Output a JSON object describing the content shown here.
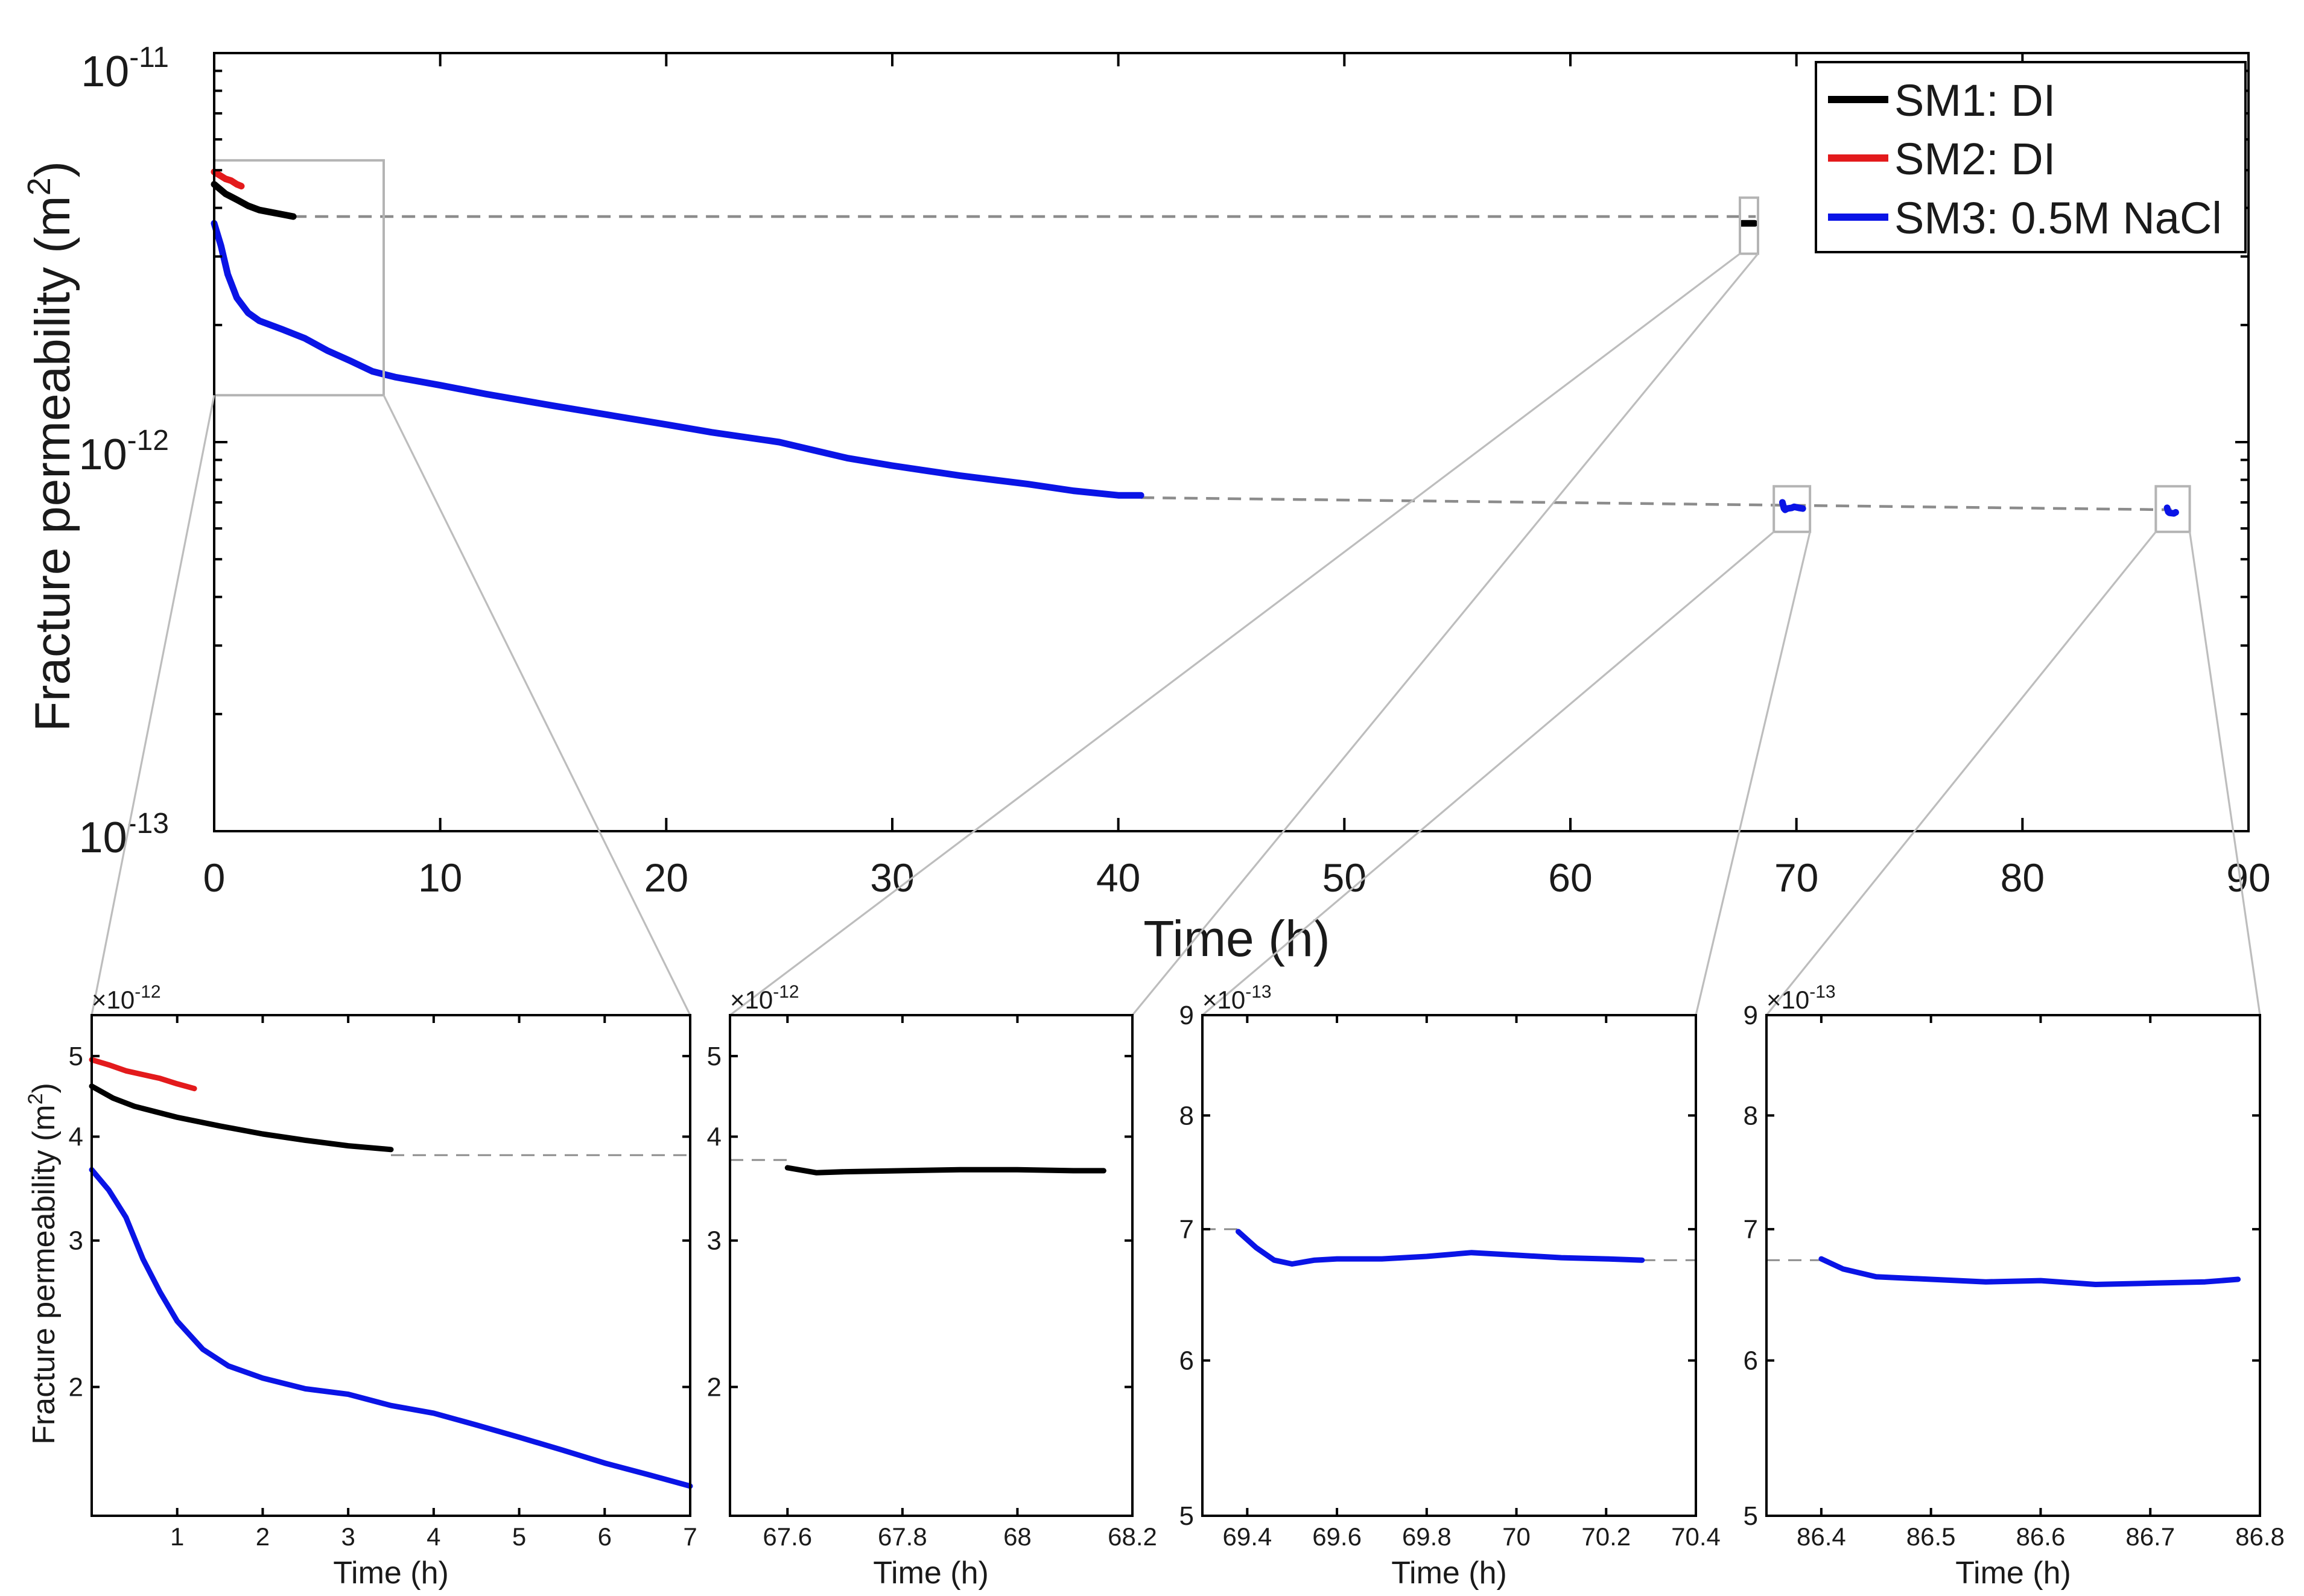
{
  "figure": {
    "main_ylabel": "Fracture permeability (m",
    "main_ylabel_sup": "2",
    "main_ylabel_close": ")",
    "sub_ylabel": "Fracture permeability (m",
    "sub_ylabel_sup": "2",
    "sub_ylabel_close": ")",
    "exp_base": "10",
    "times_base": "×10",
    "colors": {
      "SM1": "#000000",
      "SM2": "#e31a1c",
      "SM3": "#0a14e6"
    }
  },
  "chart_data": [
    {
      "id": "main",
      "type": "line",
      "yscale": "log",
      "xlabel": "Time (h)",
      "ylabel": "Fracture permeability (m2)",
      "xlim": [
        0,
        90
      ],
      "ylim": [
        1e-13,
        1e-11
      ],
      "xticks": [
        0,
        10,
        20,
        30,
        40,
        50,
        60,
        70,
        80,
        90
      ],
      "xtick_labels": [
        "0",
        "10",
        "20",
        "30",
        "40",
        "50",
        "60",
        "70",
        "80",
        "90"
      ],
      "ytick_labels": [
        {
          "value": 1e-11,
          "base": "10",
          "exp": "-11"
        },
        {
          "value": 1e-12,
          "base": "10",
          "exp": "-12"
        },
        {
          "value": 1e-13,
          "base": "10",
          "exp": "-13"
        }
      ],
      "legend": {
        "position": "top-right",
        "entries": [
          {
            "series": "SM1",
            "label": "SM1: DI"
          },
          {
            "series": "SM2",
            "label": "SM2: DI"
          },
          {
            "series": "SM3",
            "label": "SM3: 0.5M NaCl"
          }
        ]
      },
      "series": [
        {
          "name": "SM1: DI",
          "key": "SM1",
          "x": [
            0,
            0.5,
            1,
            1.5,
            2,
            2.5,
            3,
            3.5
          ],
          "y": [
            4.6e-12,
            4.35e-12,
            4.2e-12,
            4.05e-12,
            3.95e-12,
            3.9e-12,
            3.85e-12,
            3.8e-12
          ]
        },
        {
          "name": "SM2: DI",
          "key": "SM2",
          "x": [
            0,
            0.25,
            0.5,
            0.75,
            1,
            1.2
          ],
          "y": [
            4.95e-12,
            4.85e-12,
            4.75e-12,
            4.7e-12,
            4.6e-12,
            4.55e-12
          ]
        },
        {
          "name": "SM1: DI (day 3)",
          "key": "SM1",
          "x": [
            67.6,
            68.15
          ],
          "y": [
            3.65e-12,
            3.65e-12
          ]
        },
        {
          "name": "SM3: 0.5M NaCl",
          "key": "SM3",
          "x": [
            0,
            0.3,
            0.6,
            1,
            1.5,
            2,
            3,
            4,
            5,
            6,
            7,
            8,
            10,
            12,
            15,
            18,
            20,
            22,
            25,
            28,
            30,
            33,
            36,
            38,
            40,
            41
          ],
          "y": [
            3.65e-12,
            3.2e-12,
            2.7e-12,
            2.35e-12,
            2.15e-12,
            2.05e-12,
            1.95e-12,
            1.85e-12,
            1.72e-12,
            1.62e-12,
            1.52e-12,
            1.47e-12,
            1.4e-12,
            1.33e-12,
            1.24e-12,
            1.16e-12,
            1.11e-12,
            1.06e-12,
            1e-12,
            9.1e-13,
            8.7e-13,
            8.2e-13,
            7.8e-13,
            7.5e-13,
            7.3e-13,
            7.3e-13
          ]
        },
        {
          "name": "SM3: 0.5M NaCl (day 3)",
          "key": "SM3",
          "x": [
            69.38,
            69.45,
            69.5,
            69.6,
            69.8,
            69.9,
            70.1,
            70.28
          ],
          "y": [
            7e-13,
            6.75e-13,
            6.7e-13,
            6.75e-13,
            6.78e-13,
            6.82e-13,
            6.78e-13,
            6.75e-13
          ]
        },
        {
          "name": "SM3: 0.5M NaCl (day 4)",
          "key": "SM3",
          "x": [
            86.4,
            86.45,
            86.5,
            86.6,
            86.7,
            86.78
          ],
          "y": [
            6.78e-13,
            6.62e-13,
            6.58e-13,
            6.57e-13,
            6.56e-13,
            6.6e-13
          ]
        }
      ],
      "reference_lines": [
        {
          "x": [
            3.5,
            68.2
          ],
          "y": [
            3.8e-12,
            3.8e-12
          ]
        },
        {
          "x": [
            41,
            86.6
          ],
          "y": [
            7.2e-13,
            6.7e-13
          ]
        }
      ],
      "zoom_boxes": [
        {
          "x": [
            0,
            7.5
          ],
          "y": [
            1.32e-12,
            5.3e-12
          ]
        },
        {
          "x": [
            67.5,
            68.3
          ],
          "y": [
            3.05e-12,
            4.25e-12
          ]
        },
        {
          "x": [
            69.0,
            70.6
          ],
          "y": [
            5.88e-13,
            7.7e-13
          ]
        },
        {
          "x": [
            85.9,
            87.4
          ],
          "y": [
            5.88e-13,
            7.7e-13
          ]
        }
      ]
    },
    {
      "id": "zoom1",
      "type": "line",
      "yscale": "log",
      "xlabel": "Time (h)",
      "ylabel": "Fracture permeability (m2)",
      "xlim": [
        0,
        7
      ],
      "ylim": [
        1.4e-12,
        5.6e-12
      ],
      "multiplier": {
        "base": "×10",
        "exp": "-12"
      },
      "xticks": [
        1,
        2,
        3,
        4,
        5,
        6,
        7
      ],
      "xtick_labels": [
        "1",
        "2",
        "3",
        "4",
        "5",
        "6",
        "7"
      ],
      "yticks": [
        2e-12,
        3e-12,
        4e-12,
        5e-12
      ],
      "ytick_labels": [
        "2",
        "3",
        "4",
        "5"
      ],
      "series": [
        {
          "name": "SM2: DI",
          "key": "SM2",
          "x": [
            0,
            0.2,
            0.4,
            0.6,
            0.8,
            1.0,
            1.2
          ],
          "y": [
            4.95e-12,
            4.88e-12,
            4.8e-12,
            4.75e-12,
            4.7e-12,
            4.63e-12,
            4.57e-12
          ]
        },
        {
          "name": "SM1: DI",
          "key": "SM1",
          "x": [
            0,
            0.25,
            0.5,
            1,
            1.5,
            2,
            2.5,
            3,
            3.5
          ],
          "y": [
            4.6e-12,
            4.45e-12,
            4.35e-12,
            4.22e-12,
            4.12e-12,
            4.03e-12,
            3.96e-12,
            3.9e-12,
            3.86e-12
          ]
        },
        {
          "name": "SM3: 0.5M NaCl",
          "key": "SM3",
          "x": [
            0,
            0.2,
            0.4,
            0.6,
            0.8,
            1.0,
            1.3,
            1.6,
            2.0,
            2.5,
            3.0,
            3.5,
            4.0,
            4.5,
            5.0,
            5.5,
            6.0,
            6.5,
            7.0
          ],
          "y": [
            3.65e-12,
            3.45e-12,
            3.2e-12,
            2.85e-12,
            2.6e-12,
            2.4e-12,
            2.22e-12,
            2.12e-12,
            2.05e-12,
            1.99e-12,
            1.96e-12,
            1.9e-12,
            1.86e-12,
            1.8e-12,
            1.74e-12,
            1.68e-12,
            1.62e-12,
            1.57e-12,
            1.52e-12
          ]
        }
      ],
      "reference_lines": [
        {
          "x": [
            3.5,
            7
          ],
          "y": [
            3.8e-12,
            3.8e-12
          ]
        }
      ]
    },
    {
      "id": "zoom2",
      "type": "line",
      "yscale": "log",
      "xlabel": "Time (h)",
      "xlim": [
        67.5,
        68.2
      ],
      "ylim": [
        1.4e-12,
        5.6e-12
      ],
      "multiplier": {
        "base": "×10",
        "exp": "-12"
      },
      "xticks": [
        67.6,
        67.8,
        68,
        68.2
      ],
      "xtick_labels": [
        "67.6",
        "67.8",
        "68",
        "68.2"
      ],
      "yticks": [
        2e-12,
        3e-12,
        4e-12,
        5e-12
      ],
      "ytick_labels": [
        "2",
        "3",
        "4",
        "5"
      ],
      "series": [
        {
          "name": "SM1: DI",
          "key": "SM1",
          "x": [
            67.6,
            67.65,
            67.7,
            67.8,
            67.9,
            68.0,
            68.1,
            68.15
          ],
          "y": [
            3.67e-12,
            3.62e-12,
            3.63e-12,
            3.64e-12,
            3.65e-12,
            3.65e-12,
            3.64e-12,
            3.64e-12
          ]
        }
      ],
      "reference_lines": [
        {
          "x": [
            67.5,
            67.6
          ],
          "y": [
            3.75e-12,
            3.75e-12
          ]
        }
      ]
    },
    {
      "id": "zoom3",
      "type": "line",
      "yscale": "log",
      "xlabel": "Time (h)",
      "xlim": [
        69.3,
        70.4
      ],
      "ylim": [
        5e-13,
        9e-13
      ],
      "multiplier": {
        "base": "×10",
        "exp": "-13"
      },
      "xticks": [
        69.4,
        69.6,
        69.8,
        70,
        70.2,
        70.4
      ],
      "xtick_labels": [
        "69.4",
        "69.6",
        "69.8",
        "70",
        "70.2",
        "70.4"
      ],
      "yticks": [
        5e-13,
        6e-13,
        7e-13,
        8e-13,
        9e-13
      ],
      "ytick_labels": [
        "5",
        "6",
        "7",
        "8",
        "9"
      ],
      "series": [
        {
          "name": "SM3: 0.5M NaCl",
          "key": "SM3",
          "x": [
            69.38,
            69.42,
            69.46,
            69.5,
            69.55,
            69.6,
            69.7,
            69.8,
            69.9,
            70.0,
            70.1,
            70.2,
            70.28
          ],
          "y": [
            6.98e-13,
            6.85e-13,
            6.75e-13,
            6.72e-13,
            6.75e-13,
            6.76e-13,
            6.76e-13,
            6.78e-13,
            6.81e-13,
            6.79e-13,
            6.77e-13,
            6.76e-13,
            6.75e-13
          ]
        }
      ],
      "reference_lines": [
        {
          "x": [
            69.3,
            69.38
          ],
          "y": [
            7e-13,
            7e-13
          ]
        },
        {
          "x": [
            70.28,
            70.4
          ],
          "y": [
            6.75e-13,
            6.75e-13
          ]
        }
      ]
    },
    {
      "id": "zoom4",
      "type": "line",
      "yscale": "log",
      "xlabel": "Time (h)",
      "xlim": [
        86.35,
        86.8
      ],
      "ylim": [
        5e-13,
        9e-13
      ],
      "multiplier": {
        "base": "×10",
        "exp": "-13"
      },
      "xticks": [
        86.4,
        86.5,
        86.6,
        86.7,
        86.8
      ],
      "xtick_labels": [
        "86.4",
        "86.5",
        "86.6",
        "86.7",
        "86.8"
      ],
      "yticks": [
        5e-13,
        6e-13,
        7e-13,
        8e-13,
        9e-13
      ],
      "ytick_labels": [
        "5",
        "6",
        "7",
        "8",
        "9"
      ],
      "series": [
        {
          "name": "SM3: 0.5M NaCl",
          "key": "SM3",
          "x": [
            86.4,
            86.42,
            86.45,
            86.5,
            86.55,
            86.6,
            86.65,
            86.7,
            86.75,
            86.78
          ],
          "y": [
            6.76e-13,
            6.68e-13,
            6.62e-13,
            6.6e-13,
            6.58e-13,
            6.59e-13,
            6.56e-13,
            6.57e-13,
            6.58e-13,
            6.6e-13
          ]
        }
      ],
      "reference_lines": [
        {
          "x": [
            86.35,
            86.4
          ],
          "y": [
            6.75e-13,
            6.75e-13
          ]
        }
      ]
    }
  ]
}
